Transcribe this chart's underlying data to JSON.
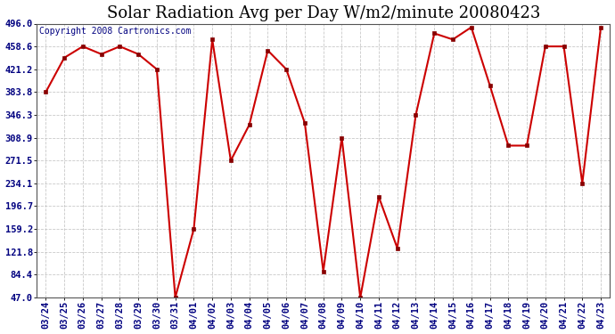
{
  "title": "Solar Radiation Avg per Day W/m2/minute 20080423",
  "copyright": "Copyright 2008 Cartronics.com",
  "labels": [
    "03/24",
    "03/25",
    "03/26",
    "03/27",
    "03/28",
    "03/29",
    "03/30",
    "03/31",
    "04/01",
    "04/02",
    "04/03",
    "04/04",
    "04/05",
    "04/06",
    "04/07",
    "04/08",
    "04/09",
    "04/10",
    "04/11",
    "04/12",
    "04/13",
    "04/14",
    "04/15",
    "04/16",
    "04/17",
    "04/18",
    "04/19",
    "04/20",
    "04/21",
    "04/22",
    "04/23"
  ],
  "values": [
    383.8,
    440.0,
    458.6,
    446.0,
    458.6,
    446.0,
    421.2,
    47.0,
    159.2,
    470.0,
    271.5,
    330.0,
    452.0,
    421.2,
    333.0,
    90.0,
    308.9,
    47.0,
    212.0,
    128.0,
    346.3,
    480.0,
    470.0,
    490.0,
    395.0,
    296.0,
    296.0,
    458.6,
    458.6,
    234.1,
    490.0
  ],
  "ylim_min": 47.0,
  "ylim_max": 496.0,
  "yticks": [
    47.0,
    84.4,
    121.8,
    159.2,
    196.7,
    234.1,
    271.5,
    308.9,
    346.3,
    383.8,
    421.2,
    458.6,
    496.0
  ],
  "line_color": "#cc0000",
  "marker_color": "#880000",
  "bg_color": "#ffffff",
  "plot_bg_color": "#ffffff",
  "grid_color": "#bbbbbb",
  "title_fontsize": 13,
  "tick_fontsize": 7.5,
  "copyright_fontsize": 7,
  "tick_color": "#000080",
  "copyright_color": "#000080",
  "title_color": "#000000"
}
